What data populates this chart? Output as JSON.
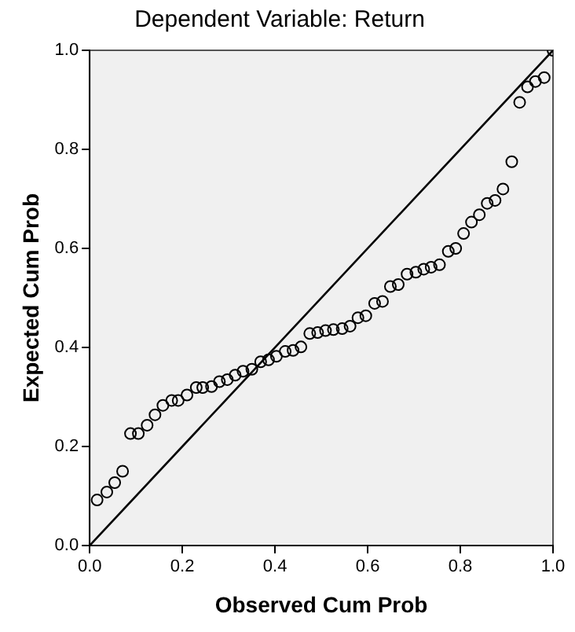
{
  "chart_data": {
    "type": "scatter",
    "title": "Dependent Variable: Return",
    "xlabel": "Observed Cum Prob",
    "ylabel": "Expected Cum Prob",
    "xlim": [
      0,
      1
    ],
    "ylim": [
      0,
      1
    ],
    "xticks": [
      {
        "value": 0,
        "label": "0.0"
      },
      {
        "value": 0.2,
        "label": "0.2"
      },
      {
        "value": 0.4,
        "label": "0.4"
      },
      {
        "value": 0.6,
        "label": "0.6"
      },
      {
        "value": 0.8,
        "label": "0.8"
      },
      {
        "value": 1,
        "label": "1.0"
      }
    ],
    "yticks": [
      {
        "value": 0,
        "label": "0.0"
      },
      {
        "value": 0.2,
        "label": "0.2"
      },
      {
        "value": 0.4,
        "label": "0.4"
      },
      {
        "value": 0.6,
        "label": "0.6"
      },
      {
        "value": 0.8,
        "label": "0.8"
      },
      {
        "value": 1,
        "label": "1.0"
      }
    ],
    "grid": false,
    "legend": false,
    "marker": "circle",
    "series": [
      {
        "color": "#000000",
        "x": [
          0.016,
          0.037,
          0.054,
          0.071,
          0.088,
          0.105,
          0.124,
          0.141,
          0.158,
          0.177,
          0.191,
          0.21,
          0.23,
          0.244,
          0.263,
          0.28,
          0.297,
          0.314,
          0.331,
          0.35,
          0.369,
          0.386,
          0.403,
          0.422,
          0.439,
          0.456,
          0.475,
          0.492,
          0.509,
          0.526,
          0.545,
          0.562,
          0.579,
          0.596,
          0.615,
          0.632,
          0.649,
          0.666,
          0.685,
          0.704,
          0.721,
          0.737,
          0.755,
          0.774,
          0.79,
          0.807,
          0.824,
          0.841,
          0.858,
          0.875,
          0.892,
          0.911,
          0.928,
          0.945,
          0.962,
          0.981,
          1.0
        ],
        "values": [
          0.092,
          0.108,
          0.127,
          0.15,
          0.226,
          0.226,
          0.243,
          0.264,
          0.283,
          0.293,
          0.293,
          0.304,
          0.319,
          0.319,
          0.321,
          0.331,
          0.335,
          0.344,
          0.352,
          0.356,
          0.371,
          0.375,
          0.382,
          0.392,
          0.394,
          0.401,
          0.428,
          0.43,
          0.434,
          0.436,
          0.438,
          0.443,
          0.46,
          0.464,
          0.489,
          0.493,
          0.523,
          0.527,
          0.548,
          0.552,
          0.558,
          0.562,
          0.567,
          0.594,
          0.6,
          0.63,
          0.653,
          0.668,
          0.691,
          0.697,
          0.72,
          0.775,
          0.895,
          0.926,
          0.937,
          0.945,
          1.0
        ]
      },
      {
        "type": "line",
        "color": "#000000",
        "x": [
          0,
          1
        ],
        "values": [
          0,
          1
        ],
        "marker": "none",
        "line_style": "solid"
      }
    ]
  }
}
